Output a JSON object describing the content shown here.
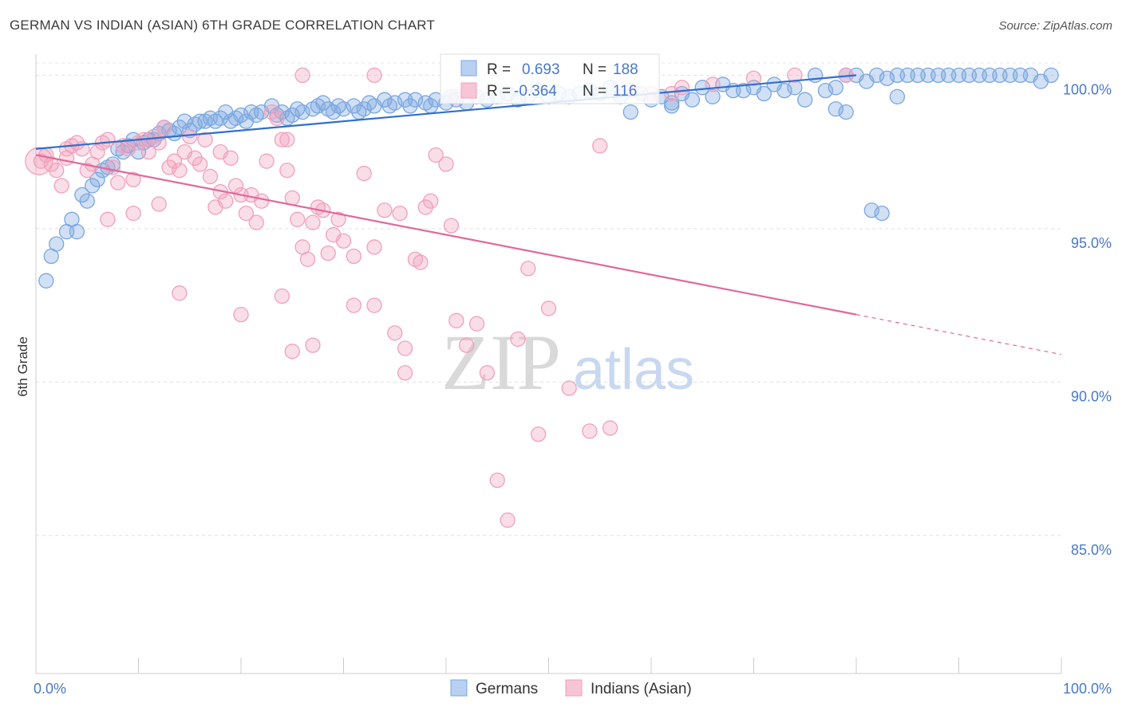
{
  "title": "GERMAN VS INDIAN (ASIAN) 6TH GRADE CORRELATION CHART",
  "source": "Source: ZipAtlas.com",
  "watermark": {
    "zip": "ZIP",
    "atlas": "atlas"
  },
  "chart_data": {
    "type": "scatter",
    "title": "GERMAN VS INDIAN (ASIAN) 6TH GRADE CORRELATION CHART",
    "xlabel": "",
    "ylabel": "6th Grade",
    "xlim": [
      0,
      100
    ],
    "ylim": [
      80.5,
      100.4
    ],
    "x_tick_labels": [
      "0.0%",
      "100.0%"
    ],
    "y_ticks": [
      100,
      95,
      90,
      85
    ],
    "y_tick_labels": [
      "100.0%",
      "95.0%",
      "90.0%",
      "85.0%"
    ],
    "legend_position": "bottom",
    "series": [
      {
        "name": "Germans",
        "color": "#7aa7e0",
        "line_color": "#2f6fcc",
        "R": "0.693",
        "N": "188",
        "trend": {
          "x0": 0,
          "y0": 97.6,
          "x1": 80,
          "y1": 100.0,
          "dash_to": 80
        },
        "points": [
          [
            1,
            93.3
          ],
          [
            1.5,
            94.1
          ],
          [
            2,
            94.5
          ],
          [
            3,
            94.9
          ],
          [
            3.5,
            95.3
          ],
          [
            4,
            94.9
          ],
          [
            4.5,
            96.1
          ],
          [
            5,
            95.9
          ],
          [
            5.5,
            96.4
          ],
          [
            6,
            96.6
          ],
          [
            6.5,
            96.9
          ],
          [
            7,
            97.0
          ],
          [
            7.5,
            97.1
          ],
          [
            8,
            97.6
          ],
          [
            8.5,
            97.5
          ],
          [
            9,
            97.7
          ],
          [
            9.5,
            97.9
          ],
          [
            10,
            97.5
          ],
          [
            10.5,
            97.8
          ],
          [
            11,
            97.9
          ],
          [
            11.5,
            97.9
          ],
          [
            12,
            98.1
          ],
          [
            12.5,
            98.3
          ],
          [
            13,
            98.2
          ],
          [
            13.5,
            98.1
          ],
          [
            14,
            98.3
          ],
          [
            14.5,
            98.5
          ],
          [
            15,
            98.2
          ],
          [
            15.5,
            98.4
          ],
          [
            16,
            98.5
          ],
          [
            16.5,
            98.5
          ],
          [
            17,
            98.6
          ],
          [
            17.5,
            98.5
          ],
          [
            18,
            98.6
          ],
          [
            18.5,
            98.8
          ],
          [
            19,
            98.5
          ],
          [
            19.5,
            98.6
          ],
          [
            20,
            98.7
          ],
          [
            20.5,
            98.5
          ],
          [
            21,
            98.8
          ],
          [
            21.5,
            98.7
          ],
          [
            22,
            98.8
          ],
          [
            23,
            99.0
          ],
          [
            23.5,
            98.7
          ],
          [
            24,
            98.8
          ],
          [
            24.5,
            98.6
          ],
          [
            25,
            98.7
          ],
          [
            25.5,
            98.9
          ],
          [
            26,
            98.8
          ],
          [
            27,
            98.9
          ],
          [
            27.5,
            99.0
          ],
          [
            28,
            99.1
          ],
          [
            28.5,
            98.9
          ],
          [
            29,
            98.8
          ],
          [
            29.5,
            99.0
          ],
          [
            30,
            98.9
          ],
          [
            31,
            99.0
          ],
          [
            31.5,
            98.8
          ],
          [
            32,
            98.9
          ],
          [
            32.5,
            99.1
          ],
          [
            33,
            99.0
          ],
          [
            34,
            99.2
          ],
          [
            34.5,
            99.0
          ],
          [
            35,
            99.1
          ],
          [
            36,
            99.2
          ],
          [
            36.5,
            99.0
          ],
          [
            37,
            99.2
          ],
          [
            38,
            99.1
          ],
          [
            38.5,
            99.0
          ],
          [
            39,
            99.2
          ],
          [
            40,
            99.1
          ],
          [
            40.5,
            99.3
          ],
          [
            41,
            99.2
          ],
          [
            42,
            99.1
          ],
          [
            43,
            99.3
          ],
          [
            44,
            99.2
          ],
          [
            45,
            99.3
          ],
          [
            46,
            99.4
          ],
          [
            47,
            99.2
          ],
          [
            48,
            99.3
          ],
          [
            49,
            99.5
          ],
          [
            50,
            99.3
          ],
          [
            51,
            99.4
          ],
          [
            52,
            99.3
          ],
          [
            53,
            99.4
          ],
          [
            54,
            99.5
          ],
          [
            55,
            99.4
          ],
          [
            56,
            99.6
          ],
          [
            57,
            99.3
          ],
          [
            58,
            99.5
          ],
          [
            59,
            99.4
          ],
          [
            60,
            99.2
          ],
          [
            61,
            99.3
          ],
          [
            62,
            99.1
          ],
          [
            63,
            99.4
          ],
          [
            64,
            99.2
          ],
          [
            65,
            99.6
          ],
          [
            66,
            99.3
          ],
          [
            67,
            99.7
          ],
          [
            68,
            99.5
          ],
          [
            69,
            99.5
          ],
          [
            70,
            99.6
          ],
          [
            71,
            99.4
          ],
          [
            72,
            99.7
          ],
          [
            73,
            99.5
          ],
          [
            74,
            99.6
          ],
          [
            75,
            99.2
          ],
          [
            76,
            100.0
          ],
          [
            77,
            99.5
          ],
          [
            78,
            99.6
          ],
          [
            79,
            100.0
          ],
          [
            80,
            100.0
          ],
          [
            81,
            99.8
          ],
          [
            82,
            100.0
          ],
          [
            83,
            99.9
          ],
          [
            84,
            100.0
          ],
          [
            85,
            100.0
          ],
          [
            86,
            100.0
          ],
          [
            87,
            100.0
          ],
          [
            88,
            100.0
          ],
          [
            89,
            100.0
          ],
          [
            90,
            100.0
          ],
          [
            91,
            100.0
          ],
          [
            92,
            100.0
          ],
          [
            93,
            100.0
          ],
          [
            94,
            100.0
          ],
          [
            95,
            100.0
          ],
          [
            96,
            100.0
          ],
          [
            97,
            100.0
          ],
          [
            98,
            99.8
          ],
          [
            99,
            100.0
          ],
          [
            78,
            98.9
          ],
          [
            79,
            98.8
          ],
          [
            81.5,
            95.6
          ],
          [
            82.5,
            95.5
          ],
          [
            84,
            99.3
          ],
          [
            58,
            98.8
          ],
          [
            62,
            99.0
          ]
        ]
      },
      {
        "name": "Indians (Asian)",
        "color": "#f2a0bb",
        "line_color": "#e0699a",
        "R": "-0.364",
        "N": "116",
        "trend": {
          "x0": 0,
          "y0": 97.4,
          "x1": 80,
          "y1": 92.2,
          "dash_to": 100
        },
        "points": [
          [
            0.5,
            97.2
          ],
          [
            1,
            97.4
          ],
          [
            1.5,
            97.1
          ],
          [
            2,
            96.9
          ],
          [
            2.5,
            96.4
          ],
          [
            3,
            97.6
          ],
          [
            3.5,
            97.7
          ],
          [
            4,
            97.8
          ],
          [
            4.5,
            97.6
          ],
          [
            5,
            96.9
          ],
          [
            5.5,
            97.1
          ],
          [
            6,
            97.5
          ],
          [
            6.5,
            97.8
          ],
          [
            7,
            97.9
          ],
          [
            7.5,
            97.0
          ],
          [
            8,
            96.5
          ],
          [
            8.5,
            97.7
          ],
          [
            9,
            97.6
          ],
          [
            9.5,
            96.6
          ],
          [
            10,
            97.8
          ],
          [
            10.5,
            97.9
          ],
          [
            11,
            97.5
          ],
          [
            11.5,
            98.0
          ],
          [
            12,
            97.8
          ],
          [
            12.5,
            98.3
          ],
          [
            13,
            97.0
          ],
          [
            13.5,
            97.2
          ],
          [
            14,
            96.9
          ],
          [
            14.5,
            97.5
          ],
          [
            15,
            98.0
          ],
          [
            15.5,
            97.3
          ],
          [
            16,
            97.1
          ],
          [
            16.5,
            97.9
          ],
          [
            17,
            96.7
          ],
          [
            17.5,
            95.7
          ],
          [
            18,
            96.2
          ],
          [
            18.5,
            95.9
          ],
          [
            19,
            97.3
          ],
          [
            19.5,
            96.4
          ],
          [
            20,
            96.1
          ],
          [
            20.5,
            95.5
          ],
          [
            21,
            96.1
          ],
          [
            21.5,
            95.2
          ],
          [
            22,
            95.9
          ],
          [
            22.5,
            97.2
          ],
          [
            23,
            98.8
          ],
          [
            23.5,
            98.6
          ],
          [
            24,
            97.9
          ],
          [
            24.5,
            96.9
          ],
          [
            25,
            96.0
          ],
          [
            25.5,
            95.3
          ],
          [
            26,
            94.4
          ],
          [
            26.5,
            94.0
          ],
          [
            27,
            95.2
          ],
          [
            27.5,
            95.7
          ],
          [
            28,
            95.6
          ],
          [
            28.5,
            94.2
          ],
          [
            29,
            94.8
          ],
          [
            29.5,
            95.3
          ],
          [
            30,
            94.6
          ],
          [
            31,
            94.1
          ],
          [
            32,
            96.8
          ],
          [
            33,
            94.4
          ],
          [
            34,
            95.6
          ],
          [
            35,
            91.6
          ],
          [
            35.5,
            95.5
          ],
          [
            36,
            91.1
          ],
          [
            37,
            94.0
          ],
          [
            37.5,
            93.9
          ],
          [
            38,
            95.7
          ],
          [
            38.5,
            95.9
          ],
          [
            39,
            97.4
          ],
          [
            40,
            97.1
          ],
          [
            40.5,
            95.1
          ],
          [
            41,
            92.0
          ],
          [
            42,
            91.2
          ],
          [
            43,
            91.9
          ],
          [
            44,
            90.3
          ],
          [
            45,
            86.8
          ],
          [
            46,
            85.5
          ],
          [
            47,
            91.4
          ],
          [
            48,
            93.7
          ],
          [
            49,
            88.3
          ],
          [
            50,
            92.4
          ],
          [
            52,
            89.8
          ],
          [
            54,
            88.4
          ],
          [
            55,
            97.7
          ],
          [
            56,
            88.5
          ],
          [
            58,
            99.5
          ],
          [
            60,
            99.4
          ],
          [
            62,
            99.4
          ],
          [
            63,
            99.6
          ],
          [
            66,
            99.7
          ],
          [
            70,
            99.9
          ],
          [
            74,
            100.0
          ],
          [
            79,
            100.0
          ],
          [
            3,
            97.3
          ],
          [
            14,
            92.9
          ],
          [
            20,
            92.2
          ],
          [
            24,
            92.8
          ],
          [
            25,
            91.0
          ],
          [
            27,
            91.2
          ],
          [
            31,
            92.5
          ],
          [
            33,
            92.5
          ],
          [
            36,
            90.3
          ],
          [
            24.5,
            97.9
          ],
          [
            12,
            95.8
          ],
          [
            9.5,
            95.5
          ],
          [
            7,
            95.3
          ],
          [
            18,
            97.5
          ],
          [
            33,
            100.0
          ],
          [
            26,
            100.0
          ],
          [
            41,
            99.3
          ]
        ]
      }
    ]
  }
}
